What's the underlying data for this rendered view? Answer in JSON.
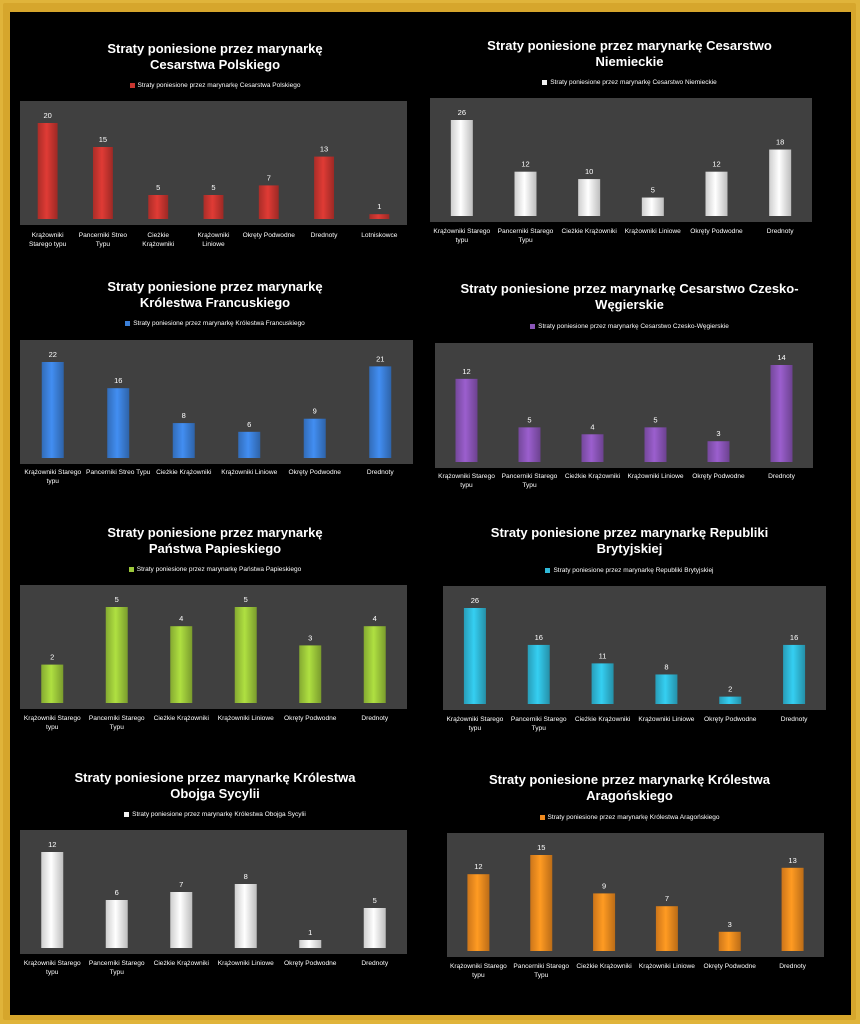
{
  "chart_data": [
    {
      "type": "bar",
      "title": "Straty poniesione przez marynarkę Cesarstwa Polskiego",
      "legend": "Straty poniesione przez marynarkę Cesarstwa Polskiego",
      "color": "#c8352f",
      "categories": [
        "Krążowniki Starego typu",
        "Pancerniki Streo Typu",
        "Cieżkie Krążowniki",
        "Krążowniki Liniowe",
        "Okręty Podwodne",
        "Drednoty",
        "Lotniskowce"
      ],
      "values": [
        20,
        15,
        5,
        5,
        7,
        13,
        1
      ]
    },
    {
      "type": "bar",
      "title": "Straty poniesione przez marynarkę Cesarstwo Niemieckie",
      "legend": "Straty poniesione przez marynarkę Cesarstwo Niemieckie",
      "color": "#f2f2f2",
      "categories": [
        "Krążowniki Starego typu",
        "Pancerniki Starego Typu",
        "Cieżkie Krążowniki",
        "Krążowniki Liniowe",
        "Okręty Podwodne",
        "Drednoty"
      ],
      "values": [
        26,
        12,
        10,
        5,
        12,
        18
      ]
    },
    {
      "type": "bar",
      "title": "Straty poniesione przez marynarkę Królestwa Francuskiego",
      "legend": "Straty poniesione przez marynarkę Królestwa Francuskiego",
      "color": "#3b7fd8",
      "categories": [
        "Krążowniki Starego typu",
        "Pancerniki Streo Typu",
        "Cieżkie Krążowniki",
        "Krążowniki Liniowe",
        "Okręty Podwodne",
        "Drednoty"
      ],
      "values": [
        22,
        16,
        8,
        6,
        9,
        21
      ]
    },
    {
      "type": "bar",
      "title": "Straty poniesione przez marynarkę Cesarstwo Czesko-Węgierskie",
      "legend": "Straty poniesione przez marynarkę Cesarstwo Czesko-Węgierskie",
      "color": "#8a55b8",
      "categories": [
        "Krążowniki Starego typu",
        "Pancerniki Starego Typu",
        "Cieżkie Krążowniki",
        "Krążowniki Liniowe",
        "Okręty Podwodne",
        "Drednoty"
      ],
      "values": [
        12,
        5,
        4,
        5,
        3,
        14
      ]
    },
    {
      "type": "bar",
      "title": "Straty poniesione przez marynarkę Państwa Papieskiego",
      "legend": "Straty poniesione przez marynarkę Państwa Papieskiego",
      "color": "#9cc83a",
      "categories": [
        "Krążowniki Starego typu",
        "Pancerniki Starego Typu",
        "Cieżkie Krążowniki",
        "Krążowniki Liniowe",
        "Okręty Podwodne",
        "Drednoty"
      ],
      "values": [
        2,
        5,
        4,
        5,
        3,
        4
      ]
    },
    {
      "type": "bar",
      "title": "Straty poniesione przez marynarkę Republiki Brytyjskiej",
      "legend": "Straty poniesione przez marynarkę Republiki Brytyjskiej",
      "color": "#2fb9d8",
      "categories": [
        "Krążowniki Starego typu",
        "Pancerniki Starego Typu",
        "Cieżkie Krążowniki",
        "Krążowniki Liniowe",
        "Okręty Podwodne",
        "Drednoty"
      ],
      "values": [
        26,
        16,
        11,
        8,
        2,
        16
      ]
    },
    {
      "type": "bar",
      "title": "Straty poniesione przez marynarkę Królestwa Obojga Sycylii",
      "legend": "Straty poniesione przez marynarkę Królestwa Obojga Sycylii",
      "color": "#f2f2f2",
      "categories": [
        "Krążowniki Starego typu",
        "Pancerniki Starego Typu",
        "Cieżkie Krążowniki",
        "Krążowniki Liniowe",
        "Okręty Podwodne",
        "Drednoty"
      ],
      "values": [
        12,
        6,
        7,
        8,
        1,
        5
      ]
    },
    {
      "type": "bar",
      "title": "Straty poniesione przez marynarkę Królestwa Aragońskiego",
      "legend": "Straty poniesione przez marynarkę Królestwa Aragońskiego",
      "color": "#f08a1e",
      "categories": [
        "Krążowniki Starego typu",
        "Pancerniki Starego Typu",
        "Cieżkie Krążowniki",
        "Krążowniki Liniowe",
        "Okręty Podwodne",
        "Drednoty"
      ],
      "values": [
        12,
        15,
        9,
        7,
        3,
        13
      ]
    }
  ]
}
